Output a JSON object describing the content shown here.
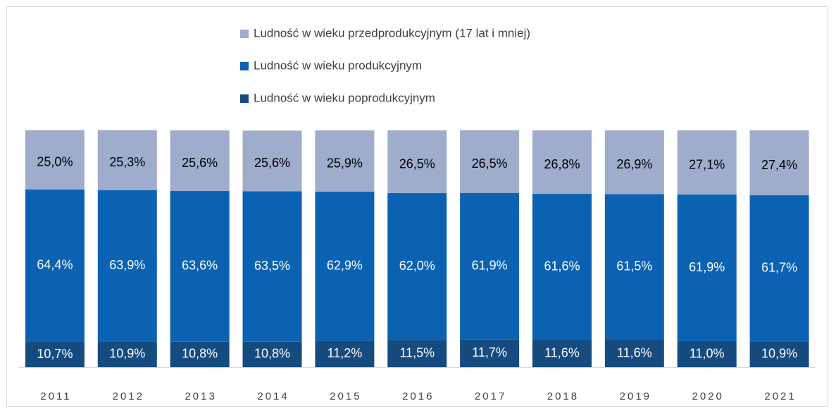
{
  "chart_data": {
    "type": "stacked_bar",
    "categories": [
      "2011",
      "2012",
      "2013",
      "2014",
      "2015",
      "2016",
      "2017",
      "2018",
      "2019",
      "2020",
      "2021"
    ],
    "ylim": [
      0,
      100
    ],
    "series": [
      {
        "name": "Ludność w wieku przedprodukcyjnym (17 lat i  mniej)",
        "color": "#9faccc",
        "label_color": "#000000",
        "values": [
          25.0,
          25.3,
          25.6,
          25.6,
          25.9,
          26.5,
          26.5,
          26.8,
          26.9,
          27.1,
          27.4
        ],
        "value_labels": [
          "25,0%",
          "25,3%",
          "25,6%",
          "25,6%",
          "25,9%",
          "26,5%",
          "26,5%",
          "26,8%",
          "26,9%",
          "27,1%",
          "27,4%"
        ]
      },
      {
        "name": "Ludność w wieku produkcyjnym",
        "color": "#0b62b3",
        "label_color": "#ffffff",
        "values": [
          64.4,
          63.9,
          63.6,
          63.5,
          62.9,
          62.0,
          61.9,
          61.6,
          61.5,
          61.9,
          61.7
        ],
        "value_labels": [
          "64,4%",
          "63,9%",
          "63,6%",
          "63,5%",
          "62,9%",
          "62,0%",
          "61,9%",
          "61,6%",
          "61,5%",
          "61,9%",
          "61,7%"
        ]
      },
      {
        "name": "Ludność w wieku poprodukcyjnym",
        "color": "#164b80",
        "label_color": "#ffffff",
        "values": [
          10.7,
          10.9,
          10.8,
          10.8,
          11.2,
          11.5,
          11.7,
          11.6,
          11.6,
          11.0,
          10.9
        ],
        "value_labels": [
          "10,7%",
          "10,9%",
          "10,8%",
          "10,8%",
          "11,2%",
          "11,5%",
          "11,7%",
          "11,6%",
          "11,6%",
          "11,0%",
          "10,9%"
        ]
      }
    ]
  }
}
